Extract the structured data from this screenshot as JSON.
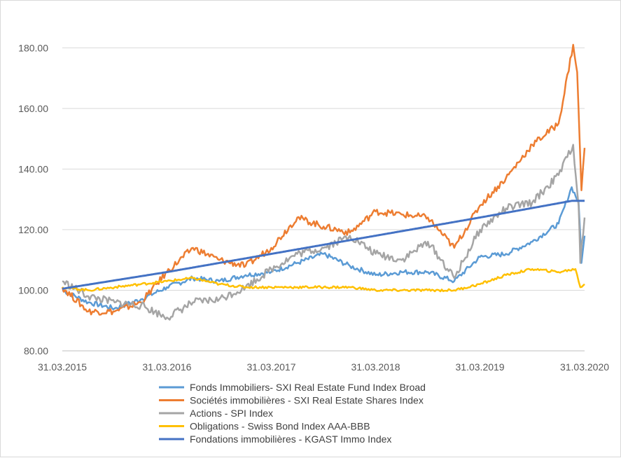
{
  "chart_data": {
    "type": "line",
    "title": "",
    "xlabel": "",
    "ylabel": "",
    "ylim": [
      80,
      180
    ],
    "y_ticks": [
      "80.00",
      "100.00",
      "120.00",
      "140.00",
      "160.00",
      "180.00"
    ],
    "x_ticks": [
      "31.03.2015",
      "31.03.2016",
      "31.03.2017",
      "31.03.2018",
      "31.03.2019",
      "31.03.2020"
    ],
    "grid": "horizontal",
    "legend_position": "bottom",
    "series": [
      {
        "name": "Fonds Immobiliers- SXI Real Estate Fund Index Broad",
        "color": "#5B9BD5",
        "x": [
          "2015-03-31",
          "2015-06-30",
          "2015-09-30",
          "2015-12-31",
          "2016-03-31",
          "2016-06-30",
          "2016-09-30",
          "2016-12-31",
          "2017-03-31",
          "2017-06-30",
          "2017-09-30",
          "2017-12-31",
          "2018-03-31",
          "2018-06-30",
          "2018-09-30",
          "2018-12-31",
          "2019-03-31",
          "2019-06-30",
          "2019-09-30",
          "2019-12-31",
          "2020-02-15",
          "2020-03-10",
          "2020-03-20",
          "2020-03-31"
        ],
        "values": [
          100,
          96,
          94,
          97,
          101,
          104,
          103,
          105,
          106,
          109,
          112,
          108,
          105,
          106,
          106,
          103,
          111,
          112,
          116,
          122,
          134,
          129,
          109,
          118
        ]
      },
      {
        "name": "Sociétés immobilières - SXI Real Estate Shares Index",
        "color": "#ED7D31",
        "x": [
          "2015-03-31",
          "2015-06-30",
          "2015-09-30",
          "2015-12-31",
          "2016-03-31",
          "2016-06-30",
          "2016-09-30",
          "2016-12-31",
          "2017-03-31",
          "2017-06-30",
          "2017-09-30",
          "2017-12-31",
          "2018-03-31",
          "2018-06-30",
          "2018-09-30",
          "2018-12-31",
          "2019-03-31",
          "2019-06-30",
          "2019-09-30",
          "2019-12-31",
          "2020-02-20",
          "2020-03-05",
          "2020-03-20",
          "2020-03-31"
        ],
        "values": [
          101,
          93,
          93,
          96,
          106,
          114,
          110,
          108,
          114,
          124,
          121,
          119,
          126,
          125,
          124,
          114,
          128,
          137,
          148,
          155,
          181,
          172,
          133,
          147
        ]
      },
      {
        "name": "Actions - SPI Index",
        "color": "#A5A5A5",
        "x": [
          "2015-03-31",
          "2015-06-30",
          "2015-09-30",
          "2015-12-31",
          "2016-03-31",
          "2016-06-30",
          "2016-09-30",
          "2016-12-31",
          "2017-03-31",
          "2017-06-30",
          "2017-09-30",
          "2017-12-31",
          "2018-03-31",
          "2018-06-30",
          "2018-09-30",
          "2018-12-31",
          "2019-03-31",
          "2019-06-30",
          "2019-09-30",
          "2019-12-31",
          "2020-02-20",
          "2020-03-10",
          "2020-03-16",
          "2020-03-31"
        ],
        "values": [
          103,
          98,
          96,
          95,
          91,
          96,
          97,
          101,
          107,
          112,
          114,
          118,
          112,
          110,
          116,
          104,
          120,
          127,
          129,
          138,
          148,
          128,
          109,
          124
        ]
      },
      {
        "name": "Obligations - Swiss Bond Index AAA-BBB",
        "color": "#FFC000",
        "x": [
          "2015-03-31",
          "2015-06-30",
          "2015-09-30",
          "2015-12-31",
          "2016-03-31",
          "2016-06-30",
          "2016-09-30",
          "2016-12-31",
          "2017-03-31",
          "2017-06-30",
          "2017-09-30",
          "2017-12-31",
          "2018-03-31",
          "2018-06-30",
          "2018-09-30",
          "2018-12-31",
          "2019-03-31",
          "2019-06-30",
          "2019-09-30",
          "2019-12-31",
          "2020-02-28",
          "2020-03-16",
          "2020-03-31"
        ],
        "values": [
          101,
          100,
          101,
          102,
          103,
          104,
          102,
          101,
          101,
          101,
          101,
          101,
          100,
          100,
          100,
          100,
          102,
          105,
          107,
          106,
          107,
          101,
          102
        ]
      },
      {
        "name": "Fondations immobilières - KGAST Immo Index",
        "color": "#4472C4",
        "x": [
          "2015-03-31",
          "2016-03-31",
          "2017-03-31",
          "2018-03-31",
          "2019-03-31",
          "2020-02-15",
          "2020-03-31"
        ],
        "values": [
          100.5,
          106,
          112,
          118,
          124,
          129.5,
          129.5
        ]
      }
    ]
  }
}
